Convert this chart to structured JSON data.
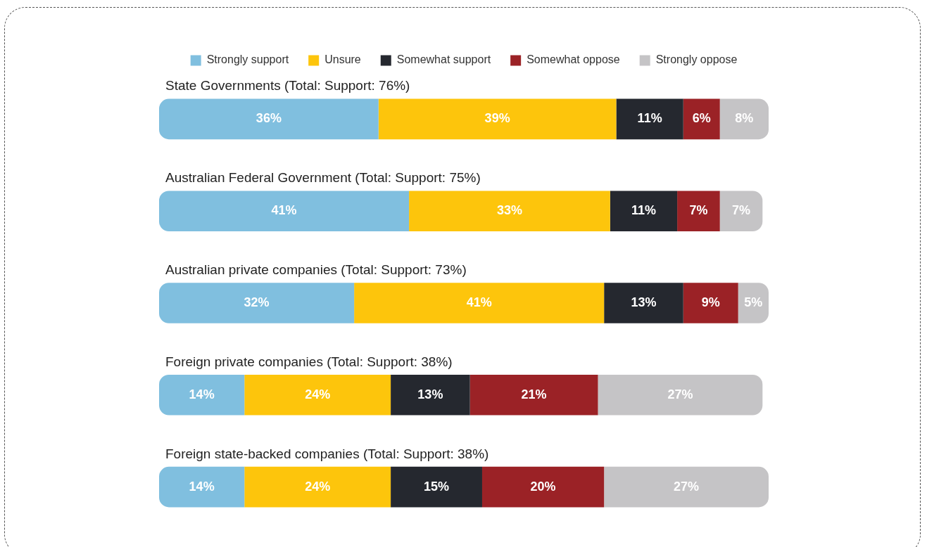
{
  "chart_data": {
    "type": "bar",
    "orientation": "horizontal",
    "stacked": true,
    "legend": "top",
    "tick_labels": "y",
    "xlim": [
      0,
      100
    ],
    "categories": [
      "State Governments (Total: Support: 76%)",
      "Australian Federal Government (Total: Support: 75%)",
      "Australian private companies (Total: Support: 73%)",
      "Foreign private companies (Total: Support: 38%)",
      "Foreign state-backed companies (Total: Support: 38%)"
    ],
    "series": [
      {
        "name": "Strongly support",
        "color": "#80bfdf",
        "values": [
          36,
          41,
          32,
          14,
          14
        ],
        "value_labels": [
          "36%",
          "41%",
          "32%",
          "14%",
          "14%"
        ]
      },
      {
        "name": "Unsure",
        "color": "#fdc50c",
        "values": [
          39,
          33,
          41,
          24,
          24
        ],
        "value_labels": [
          "39%",
          "33%",
          "41%",
          "24%",
          "24%"
        ]
      },
      {
        "name": "Somewhat support",
        "color": "#25282f",
        "values": [
          11,
          11,
          13,
          13,
          15
        ],
        "value_labels": [
          "11%",
          "11%",
          "13%",
          "13%",
          "15%"
        ]
      },
      {
        "name": "Somewhat oppose",
        "color": "#9b2226",
        "values": [
          6,
          7,
          9,
          21,
          20
        ],
        "value_labels": [
          "6%",
          "7%",
          "9%",
          "21%",
          "20%"
        ]
      },
      {
        "name": "Strongly oppose",
        "color": "#c5c4c6",
        "values": [
          8,
          7,
          5,
          27,
          27
        ],
        "value_labels": [
          "8%",
          "7%",
          "5%",
          "27%",
          "27%"
        ]
      }
    ]
  }
}
